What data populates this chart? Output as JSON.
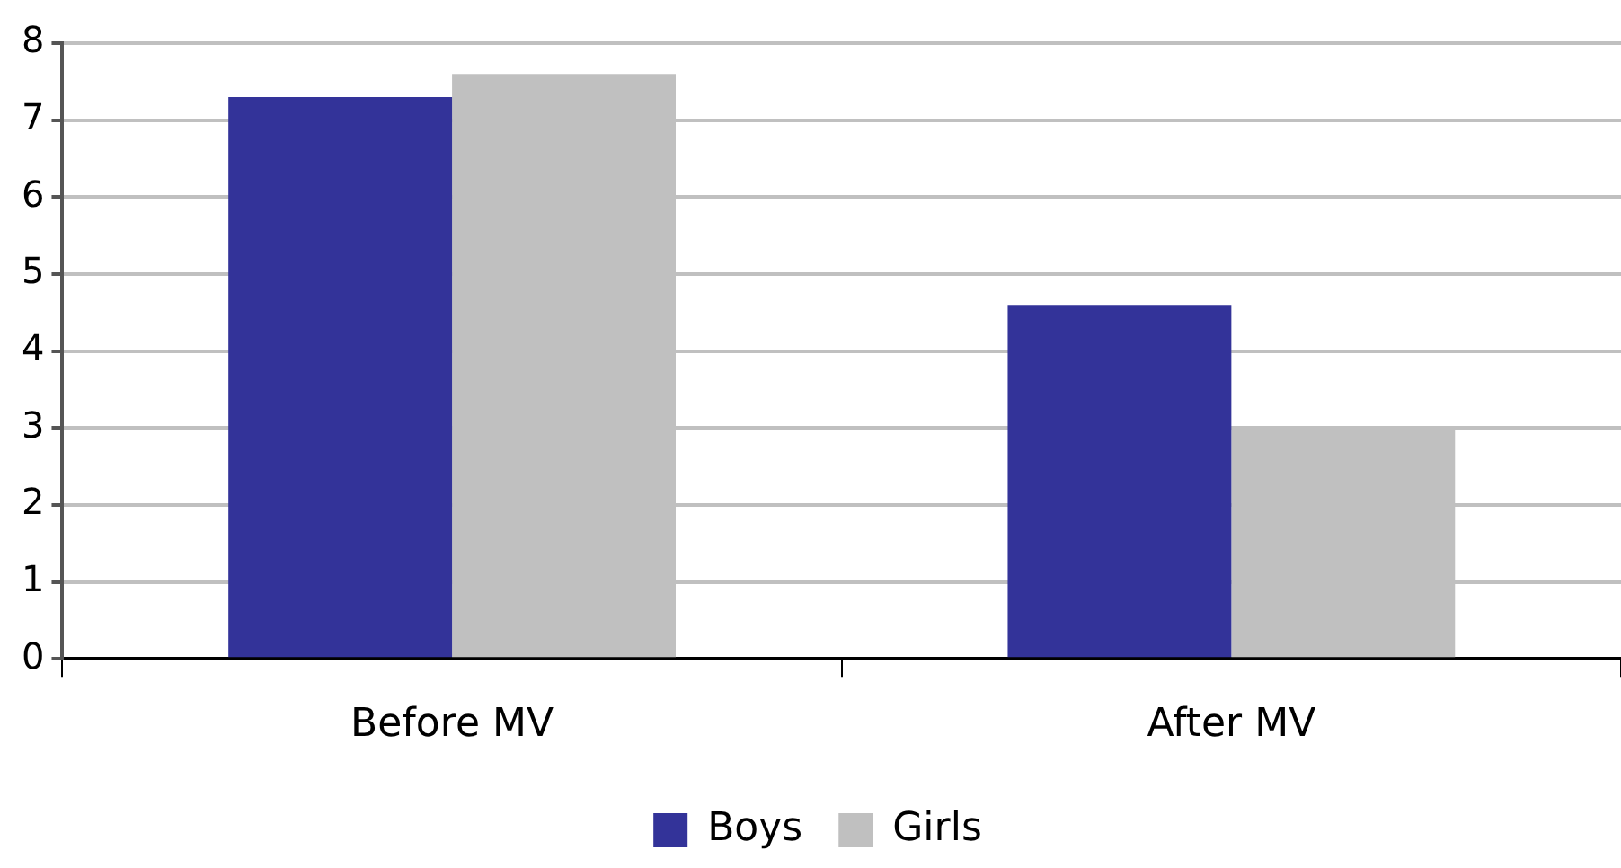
{
  "chart_data": {
    "type": "bar",
    "categories": [
      "Before MV",
      "After MV"
    ],
    "series": [
      {
        "name": "Boys",
        "color": "#333399",
        "values": [
          7.3,
          4.6
        ]
      },
      {
        "name": "Girls",
        "color": "#c0c0c0",
        "values": [
          7.6,
          3.0
        ]
      }
    ],
    "ylim": [
      0,
      8
    ],
    "yticks": [
      0,
      1,
      2,
      3,
      4,
      5,
      6,
      7,
      8
    ],
    "grid": "y",
    "legend": "bottom"
  }
}
